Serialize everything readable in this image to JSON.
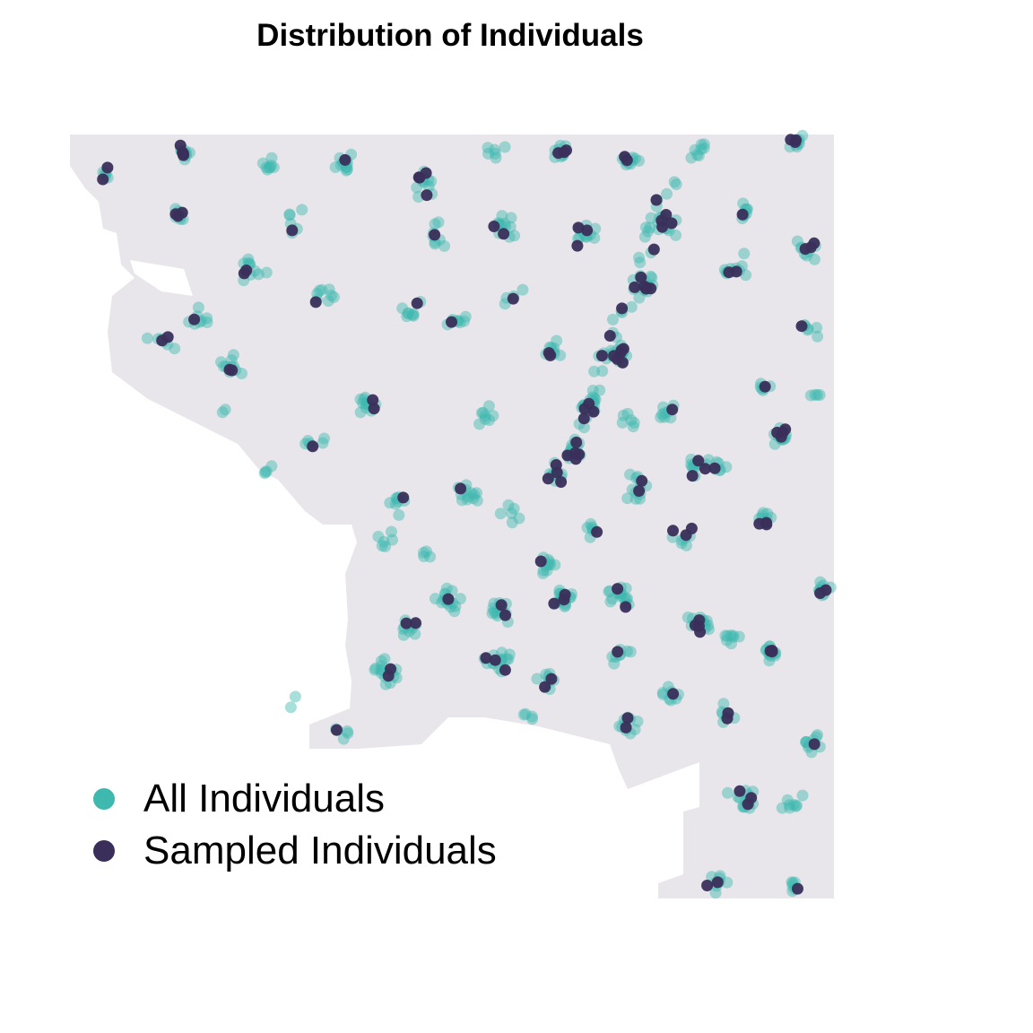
{
  "title": "Distribution of Individuals",
  "colors": {
    "region_fill": "#e8e6ea",
    "all": "#3fb8af",
    "sampled": "#3a2f5b"
  },
  "legend": {
    "items": [
      {
        "label": "All Individuals",
        "color": "#3fb8af"
      },
      {
        "label": "Sampled Individuals",
        "color": "#3a2f5b"
      }
    ]
  }
}
